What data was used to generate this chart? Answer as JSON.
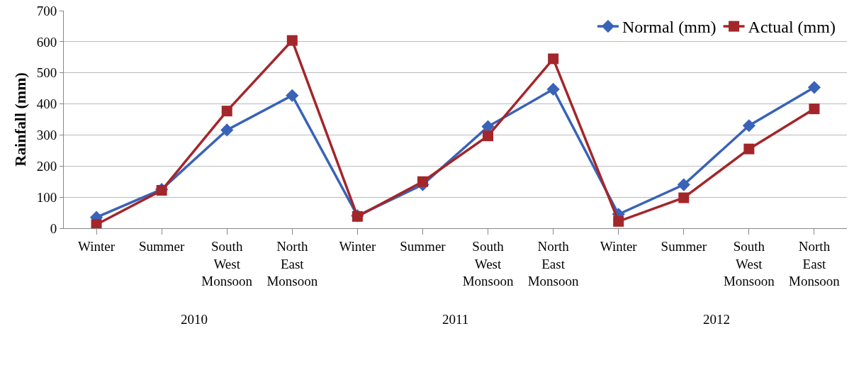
{
  "chart_data": {
    "type": "line",
    "ylabel": "Rainfall (mm)",
    "categories": [
      "Winter",
      "Summer",
      "South West Monsoon",
      "North East Monsoon",
      "Winter",
      "Summer",
      "South West Monsoon",
      "North East Monsoon",
      "Winter",
      "Summer",
      "South West Monsoon",
      "North East Monsoon"
    ],
    "annotations": [
      "2010",
      "2011",
      "2012"
    ],
    "series": [
      {
        "name": "Normal (mm)",
        "color": "#3a62b8",
        "marker": "diamond",
        "values": [
          35,
          125,
          316,
          427,
          40,
          140,
          327,
          447,
          45,
          140,
          330,
          453
        ]
      },
      {
        "name": "Actual (mm)",
        "color": "#a3262a",
        "marker": "square",
        "values": [
          12,
          122,
          377,
          604,
          38,
          150,
          297,
          545,
          22,
          98,
          255,
          384
        ]
      }
    ],
    "ylim": [
      0,
      700
    ],
    "yticks": [
      0,
      100,
      200,
      300,
      400,
      500,
      600,
      700
    ],
    "grid": "y",
    "legend": "top right",
    "line_style": "solid"
  }
}
